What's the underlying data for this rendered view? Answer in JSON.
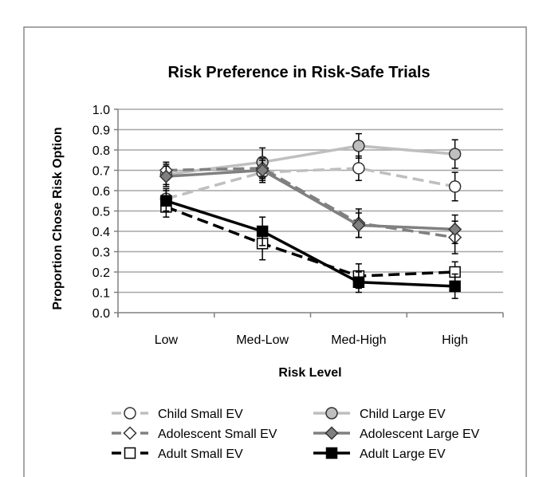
{
  "chart_data": {
    "type": "line",
    "title": "Risk Preference in Risk-Safe Trials",
    "xlabel": "Risk Level",
    "ylabel": "Proportion Chose Risk Option",
    "categories": [
      "Low",
      "Med-Low",
      "Med-High",
      "High"
    ],
    "ylim": [
      0,
      1
    ],
    "yticks": [
      "0.0",
      "0.1",
      "0.2",
      "0.3",
      "0.4",
      "0.5",
      "0.6",
      "0.7",
      "0.8",
      "0.9",
      "1.0"
    ],
    "grid": "horizontal",
    "legend_position": "bottom",
    "series": [
      {
        "name": "Child Small EV",
        "values": [
          0.56,
          0.69,
          0.71,
          0.62
        ],
        "errors": [
          0.05,
          0.05,
          0.06,
          0.07
        ],
        "color": "#bfbfbf",
        "dash": "dashed",
        "marker": "circle",
        "marker_fill": "#ffffff"
      },
      {
        "name": "Child Large EV",
        "values": [
          0.68,
          0.74,
          0.82,
          0.78
        ],
        "errors": [
          0.05,
          0.07,
          0.06,
          0.07
        ],
        "color": "#bfbfbf",
        "dash": "solid",
        "marker": "circle",
        "marker_fill": "#bfbfbf"
      },
      {
        "name": "Adolescent Small EV",
        "values": [
          0.7,
          0.71,
          0.44,
          0.37
        ],
        "errors": [
          0.04,
          0.05,
          0.07,
          0.08
        ],
        "color": "#808080",
        "dash": "dashed",
        "marker": "diamond",
        "marker_fill": "#ffffff"
      },
      {
        "name": "Adolescent Large EV",
        "values": [
          0.67,
          0.7,
          0.43,
          0.41
        ],
        "errors": [
          0.05,
          0.05,
          0.06,
          0.07
        ],
        "color": "#808080",
        "dash": "solid",
        "marker": "diamond",
        "marker_fill": "#808080"
      },
      {
        "name": "Adult Small EV",
        "values": [
          0.52,
          0.34,
          0.18,
          0.2
        ],
        "errors": [
          0.05,
          0.08,
          0.06,
          0.05
        ],
        "color": "#000000",
        "dash": "dashed",
        "marker": "square",
        "marker_fill": "#ffffff"
      },
      {
        "name": "Adult Large EV",
        "values": [
          0.55,
          0.4,
          0.15,
          0.13
        ],
        "errors": [
          0.05,
          0.07,
          0.05,
          0.06
        ],
        "color": "#000000",
        "dash": "solid",
        "marker": "square",
        "marker_fill": "#000000"
      }
    ]
  }
}
